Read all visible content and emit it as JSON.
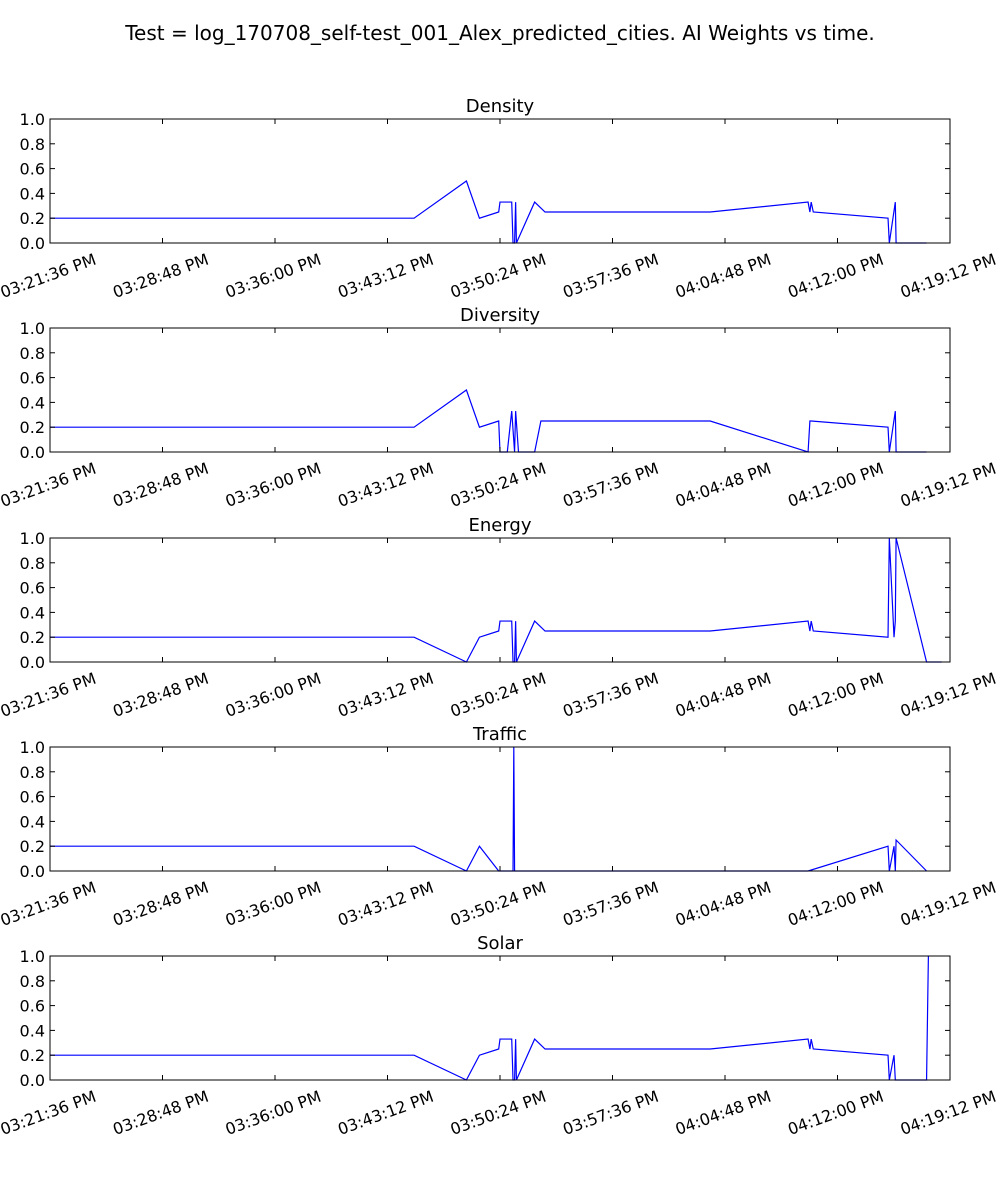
{
  "figure": {
    "suptitle": "Test = log_170708_self-test_001_Alex_predicted_cities. AI Weights vs time."
  },
  "colors": {
    "line": "#0000ff",
    "axes": "#000000",
    "background": "#ffffff"
  },
  "chart_data": [
    {
      "type": "line",
      "title": "Density",
      "x_range": [
        "03:21:36 PM",
        "04:19:12 PM"
      ],
      "ylim": [
        0.0,
        1.0
      ],
      "x_ticks": [
        "03:21:36 PM",
        "03:28:48 PM",
        "03:36:00 PM",
        "03:43:12 PM",
        "03:50:24 PM",
        "03:57:36 PM",
        "04:04:48 PM",
        "04:12:00 PM",
        "04:19:12 PM"
      ],
      "y_ticks": [
        "0.0",
        "0.2",
        "0.4",
        "0.6",
        "0.8",
        "1.0"
      ],
      "grid": false,
      "series": [
        {
          "x": [
            "03:21:36 PM",
            "03:44:54 PM",
            "03:48:15 PM",
            "03:49:05 PM",
            "03:50:19 PM",
            "03:50:24 PM",
            "03:51:09 PM",
            "03:51:14 PM",
            "03:51:20 PM",
            "03:51:24 PM",
            "03:51:27 PM",
            "03:52:37 PM",
            "03:53:17 PM",
            "04:03:51 PM",
            "04:10:07 PM",
            "04:10:14 PM",
            "04:10:19 PM",
            "04:10:27 PM",
            "04:15:14 PM",
            "04:15:19 PM",
            "04:15:42 PM",
            "04:15:45 PM",
            "04:17:42 PM"
          ],
          "y": [
            0.2,
            0.2,
            0.5,
            0.2,
            0.25,
            0.33,
            0.33,
            0.0,
            0.0,
            0.33,
            0.0,
            0.33,
            0.25,
            0.25,
            0.33,
            0.25,
            0.33,
            0.25,
            0.2,
            0.0,
            0.33,
            0.0,
            0.0
          ]
        }
      ]
    },
    {
      "type": "line",
      "title": "Diversity",
      "x_range": [
        "03:21:36 PM",
        "04:19:12 PM"
      ],
      "ylim": [
        0.0,
        1.0
      ],
      "x_ticks": [
        "03:21:36 PM",
        "03:28:48 PM",
        "03:36:00 PM",
        "03:43:12 PM",
        "03:50:24 PM",
        "03:57:36 PM",
        "04:04:48 PM",
        "04:12:00 PM",
        "04:19:12 PM"
      ],
      "y_ticks": [
        "0.0",
        "0.2",
        "0.4",
        "0.6",
        "0.8",
        "1.0"
      ],
      "grid": false,
      "series": [
        {
          "x": [
            "03:21:36 PM",
            "03:22:01 PM",
            "03:44:54 PM",
            "03:48:15 PM",
            "03:49:05 PM",
            "03:50:19 PM",
            "03:50:24 PM",
            "03:50:52 PM",
            "03:51:09 PM",
            "03:51:20 PM",
            "03:51:24 PM",
            "03:51:35 PM",
            "03:52:37 PM",
            "03:53:01 PM",
            "04:03:51 PM",
            "04:10:07 PM",
            "04:10:14 PM",
            "04:10:19 PM",
            "04:15:14 PM",
            "04:15:19 PM",
            "04:15:42 PM",
            "04:15:45 PM",
            "04:17:42 PM"
          ],
          "y": [
            0.2,
            0.2,
            0.2,
            0.5,
            0.2,
            0.25,
            0.0,
            0.0,
            0.33,
            0.0,
            0.33,
            0.0,
            0.0,
            0.25,
            0.25,
            0.0,
            0.25,
            0.25,
            0.2,
            0.0,
            0.33,
            0.0,
            0.0
          ]
        }
      ]
    },
    {
      "type": "line",
      "title": "Energy",
      "x_range": [
        "03:21:36 PM",
        "04:19:12 PM"
      ],
      "ylim": [
        0.0,
        1.0
      ],
      "x_ticks": [
        "03:21:36 PM",
        "03:28:48 PM",
        "03:36:00 PM",
        "03:43:12 PM",
        "03:50:24 PM",
        "03:57:36 PM",
        "04:04:48 PM",
        "04:12:00 PM",
        "04:19:12 PM"
      ],
      "y_ticks": [
        "0.0",
        "0.2",
        "0.4",
        "0.6",
        "0.8",
        "1.0"
      ],
      "grid": false,
      "series": [
        {
          "x": [
            "03:21:36 PM",
            "03:22:01 PM",
            "03:44:54 PM",
            "03:48:15 PM",
            "03:49:05 PM",
            "03:50:19 PM",
            "03:50:24 PM",
            "03:51:09 PM",
            "03:51:14 PM",
            "03:51:20 PM",
            "03:51:24 PM",
            "03:51:27 PM",
            "03:52:37 PM",
            "03:53:17 PM",
            "04:03:51 PM",
            "04:10:07 PM",
            "04:10:14 PM",
            "04:10:19 PM",
            "04:10:27 PM",
            "04:15:14 PM",
            "04:15:19 PM",
            "04:15:37 PM",
            "04:15:42 PM",
            "04:15:45 PM",
            "04:17:42 PM",
            "04:18:40 PM"
          ],
          "y": [
            0.2,
            0.2,
            0.2,
            0.0,
            0.2,
            0.25,
            0.33,
            0.33,
            0.0,
            0.0,
            0.33,
            0.0,
            0.33,
            0.25,
            0.25,
            0.33,
            0.25,
            0.33,
            0.25,
            0.2,
            1.0,
            0.2,
            0.33,
            1.0,
            0.0,
            0.0
          ]
        }
      ]
    },
    {
      "type": "line",
      "title": "Traffic",
      "x_range": [
        "03:21:36 PM",
        "04:19:12 PM"
      ],
      "ylim": [
        0.0,
        1.0
      ],
      "x_ticks": [
        "03:21:36 PM",
        "03:28:48 PM",
        "03:36:00 PM",
        "03:43:12 PM",
        "03:50:24 PM",
        "03:57:36 PM",
        "04:04:48 PM",
        "04:12:00 PM",
        "04:19:12 PM"
      ],
      "y_ticks": [
        "0.0",
        "0.2",
        "0.4",
        "0.6",
        "0.8",
        "1.0"
      ],
      "grid": false,
      "series": [
        {
          "x": [
            "03:21:36 PM",
            "03:22:01 PM",
            "03:44:54 PM",
            "03:48:15 PM",
            "03:49:05 PM",
            "03:50:19 PM",
            "03:51:14 PM",
            "03:51:17 PM",
            "03:51:20 PM",
            "04:10:07 PM",
            "04:15:14 PM",
            "04:15:19 PM",
            "04:15:37 PM",
            "04:15:42 PM",
            "04:15:45 PM",
            "04:17:42 PM"
          ],
          "y": [
            0.2,
            0.2,
            0.2,
            0.0,
            0.2,
            0.0,
            0.0,
            1.0,
            0.0,
            0.0,
            0.2,
            0.0,
            0.2,
            0.0,
            0.25,
            0.0
          ]
        }
      ]
    },
    {
      "type": "line",
      "title": "Solar",
      "x_range": [
        "03:21:36 PM",
        "04:19:12 PM"
      ],
      "ylim": [
        0.0,
        1.0
      ],
      "x_ticks": [
        "03:21:36 PM",
        "03:28:48 PM",
        "03:36:00 PM",
        "03:43:12 PM",
        "03:50:24 PM",
        "03:57:36 PM",
        "04:04:48 PM",
        "04:12:00 PM",
        "04:19:12 PM"
      ],
      "y_ticks": [
        "0.0",
        "0.2",
        "0.4",
        "0.6",
        "0.8",
        "1.0"
      ],
      "grid": false,
      "series": [
        {
          "x": [
            "03:21:36 PM",
            "03:44:54 PM",
            "03:48:15 PM",
            "03:49:05 PM",
            "03:50:19 PM",
            "03:50:24 PM",
            "03:51:09 PM",
            "03:51:14 PM",
            "03:51:20 PM",
            "03:51:24 PM",
            "03:51:27 PM",
            "03:52:37 PM",
            "03:53:17 PM",
            "04:03:51 PM",
            "04:10:07 PM",
            "04:10:14 PM",
            "04:10:19 PM",
            "04:10:27 PM",
            "04:15:14 PM",
            "04:15:19 PM",
            "04:15:37 PM",
            "04:15:42 PM",
            "04:17:42 PM",
            "04:17:49 PM"
          ],
          "y": [
            0.2,
            0.2,
            0.0,
            0.2,
            0.25,
            0.33,
            0.33,
            0.0,
            0.0,
            0.33,
            0.0,
            0.33,
            0.25,
            0.25,
            0.33,
            0.25,
            0.33,
            0.25,
            0.2,
            0.0,
            0.2,
            0.0,
            0.0,
            1.0
          ]
        }
      ]
    }
  ]
}
